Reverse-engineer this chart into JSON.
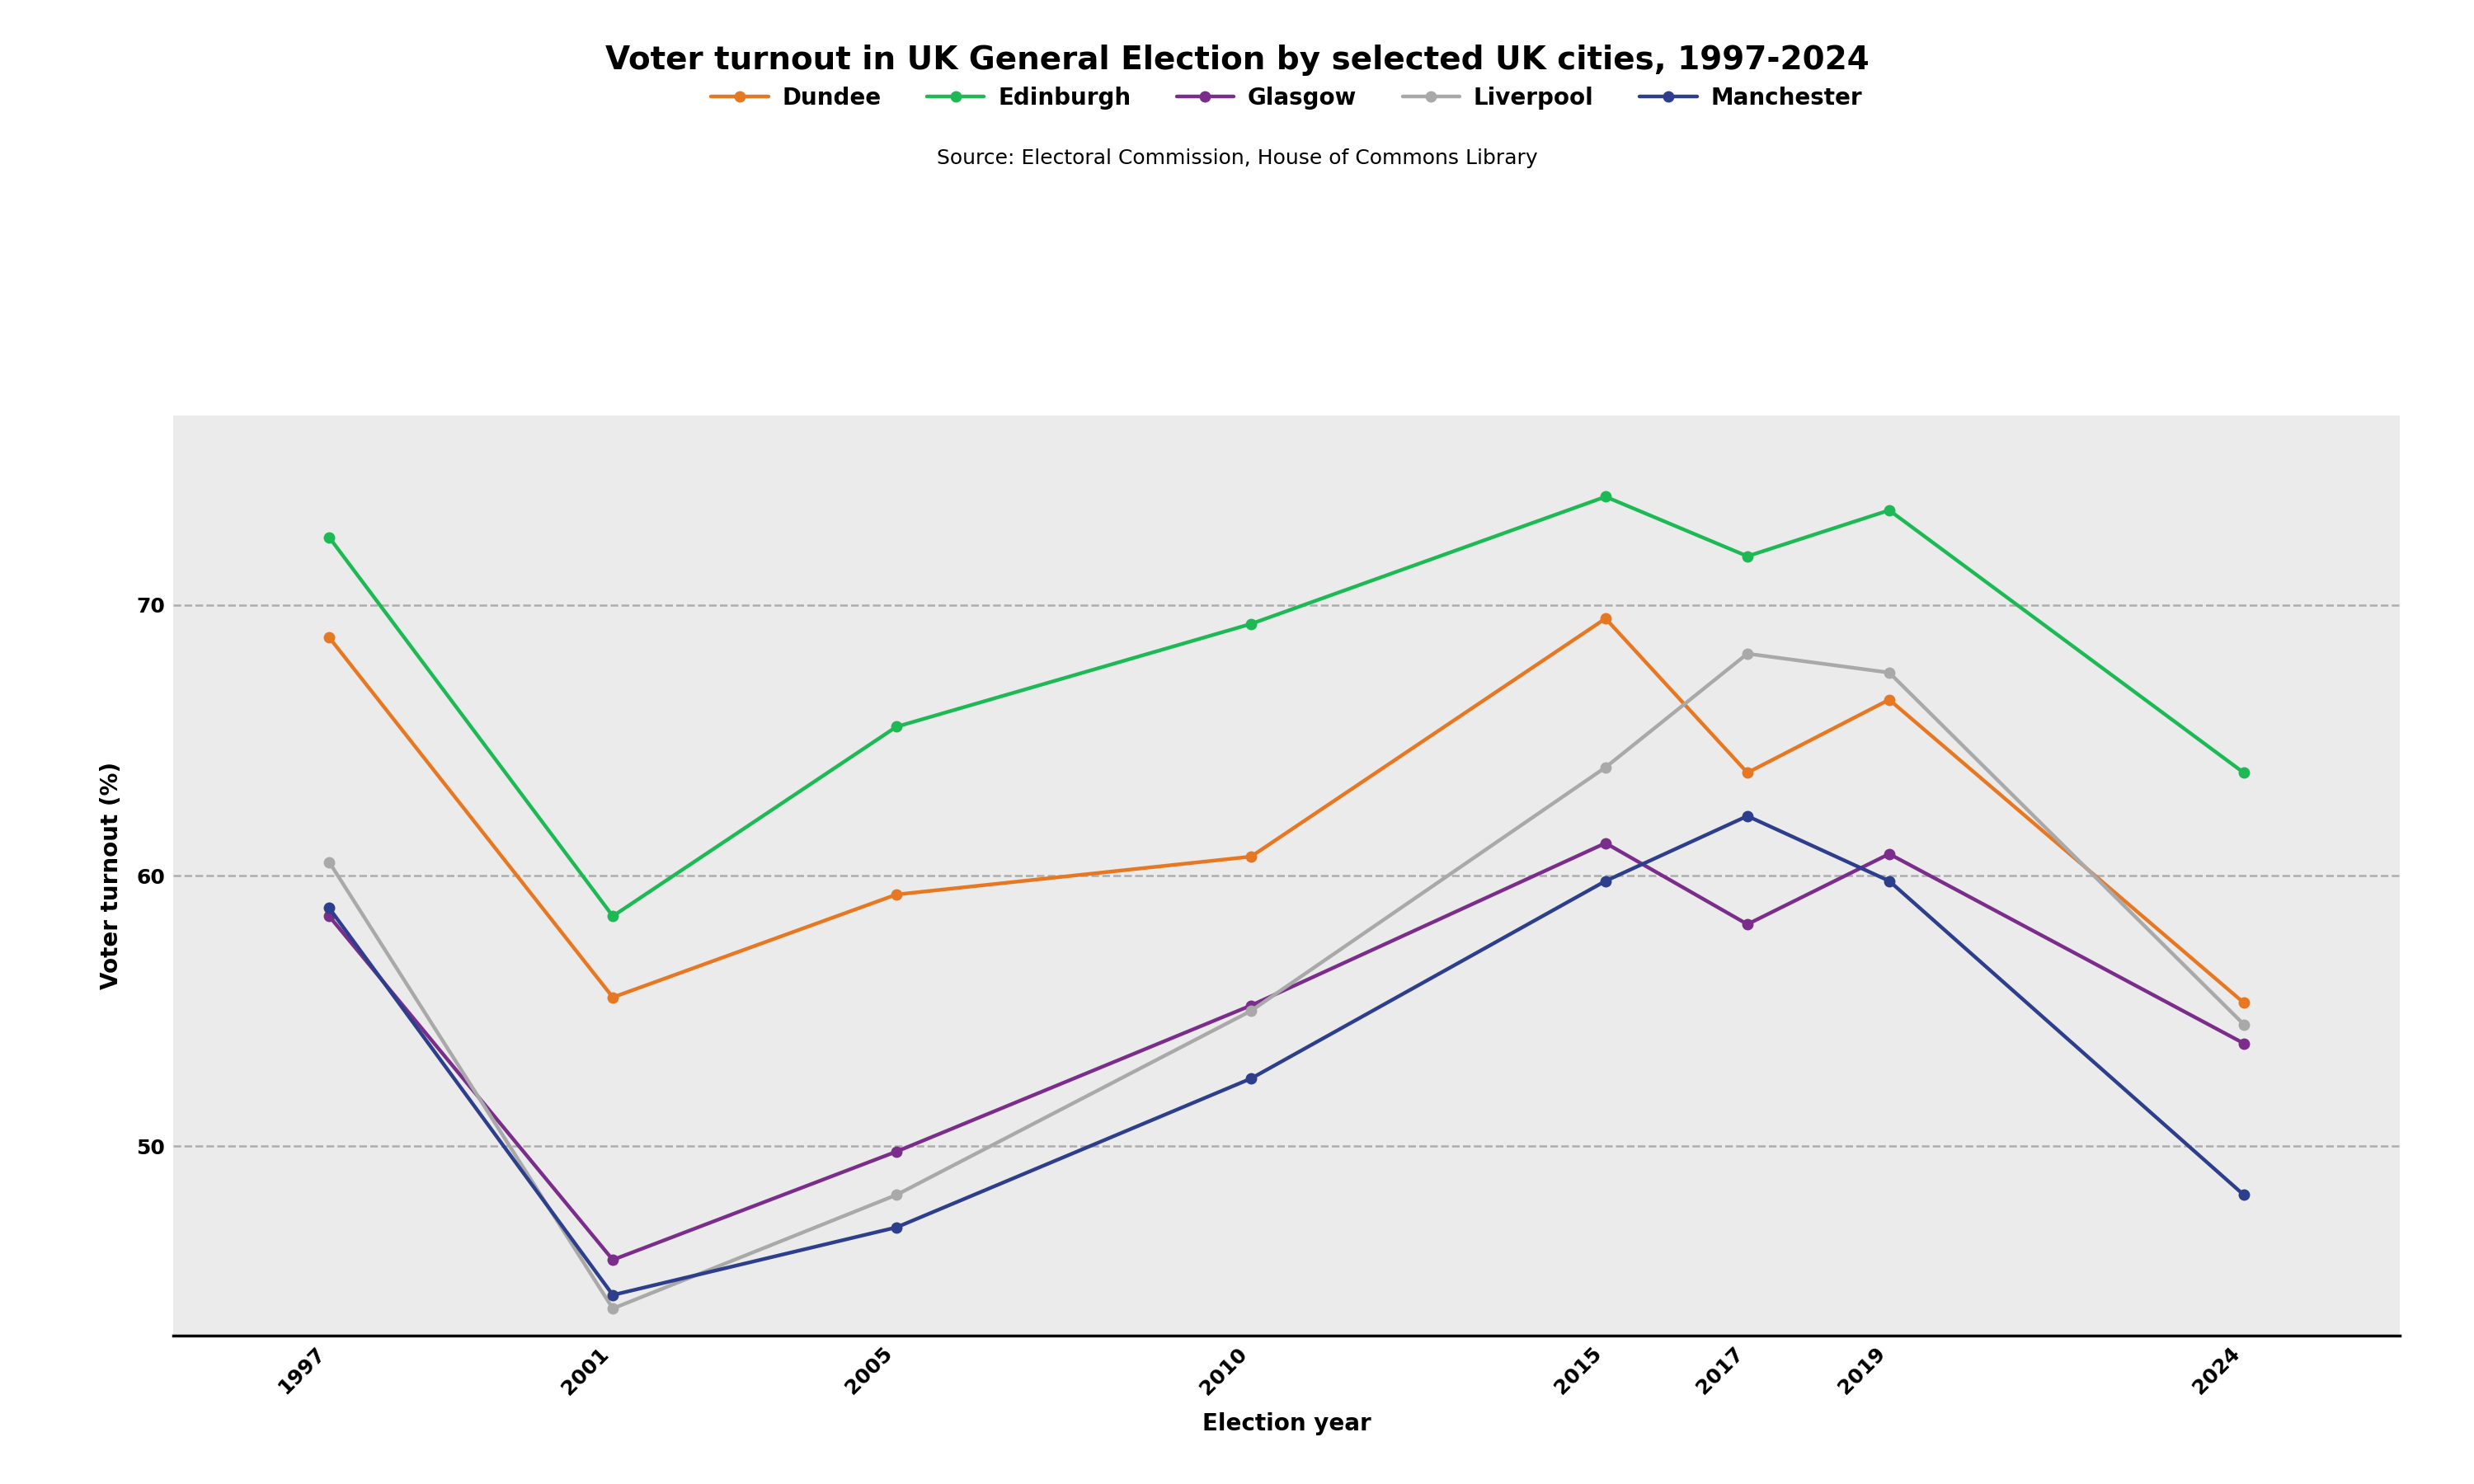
{
  "title": "Voter turnout in UK General Election by selected UK cities, 1997-2024",
  "subtitle": "Source: Electoral Commission, House of Commons Library",
  "xlabel": "Election year",
  "ylabel": "Voter turnout (%)",
  "years": [
    1997,
    2001,
    2005,
    2010,
    2015,
    2017,
    2019,
    2024
  ],
  "series": {
    "Dundee": {
      "color": "#E87722",
      "values": [
        68.8,
        55.5,
        59.3,
        60.7,
        69.5,
        63.8,
        66.5,
        55.3
      ]
    },
    "Edinburgh": {
      "color": "#1DB954",
      "values": [
        72.5,
        58.5,
        65.5,
        69.3,
        74.0,
        71.8,
        73.5,
        63.8
      ]
    },
    "Glasgow": {
      "color": "#7B2D8B",
      "values": [
        58.5,
        45.8,
        49.8,
        55.2,
        61.2,
        58.2,
        60.8,
        53.8
      ]
    },
    "Liverpool": {
      "color": "#A9A9A9",
      "values": [
        60.5,
        44.0,
        48.2,
        55.0,
        64.0,
        68.2,
        67.5,
        54.5
      ]
    },
    "Manchester": {
      "color": "#2C3E8C",
      "values": [
        58.8,
        44.5,
        47.0,
        52.5,
        59.8,
        62.2,
        59.8,
        48.2
      ]
    }
  },
  "ylim": [
    43,
    77
  ],
  "yticks": [
    50,
    60,
    70
  ],
  "fig_background": "#FFFFFF",
  "plot_background": "#EBEBEB",
  "title_fontsize": 28,
  "subtitle_fontsize": 18,
  "label_fontsize": 20,
  "tick_fontsize": 18,
  "legend_fontsize": 20,
  "linewidth": 3.2,
  "markersize": 9
}
